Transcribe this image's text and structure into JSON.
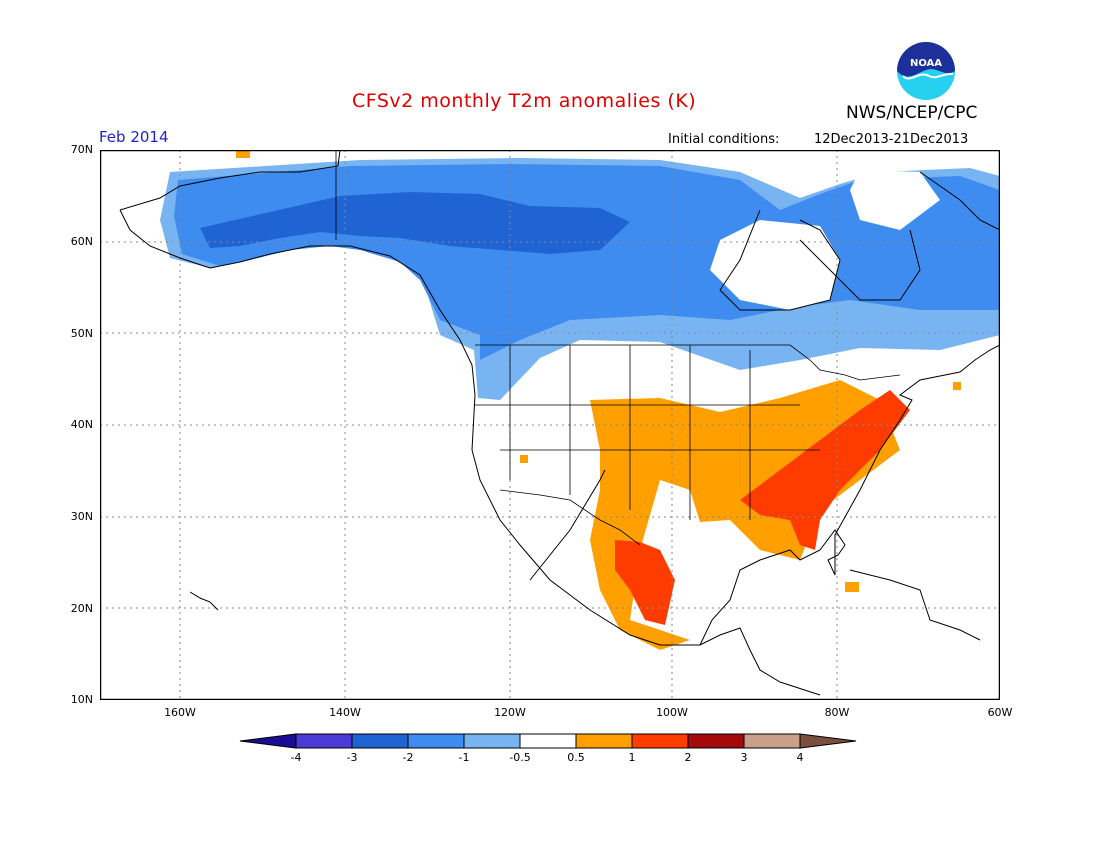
{
  "header": {
    "title": "CFSv2 monthly T2m anomalies (K)",
    "agency": "NWS/NCEP/CPC",
    "period": "Feb 2014",
    "ic_label": "Initial conditions:",
    "ic_value": "12Dec2013-21Dec2013"
  },
  "logo": {
    "text": "NOAA",
    "icon": "noaa-logo-icon"
  },
  "axes": {
    "lat_labels": [
      "70N",
      "60N",
      "50N",
      "40N",
      "30N",
      "20N",
      "10N"
    ],
    "lon_labels": [
      "160W",
      "140W",
      "120W",
      "100W",
      "80W",
      "60W"
    ]
  },
  "colorbar": {
    "ticks": [
      "-4",
      "-3",
      "-2",
      "-1",
      "-0.5",
      "0.5",
      "1",
      "2",
      "3",
      "4"
    ],
    "colors": [
      "#1a0c94",
      "#4b3bd6",
      "#1f64d2",
      "#3e8cf0",
      "#78b4f2",
      "#ffffff",
      "#ffa000",
      "#ff3c00",
      "#a50a0a",
      "#c8a08c",
      "#7a4f3e"
    ]
  },
  "map_legend": {
    "cold_strong": "#1f64d2",
    "cold_mid": "#3e8cf0",
    "cold_weak": "#78b4f2",
    "warm_weak": "#ffa000",
    "warm_mid": "#ff3c00"
  }
}
